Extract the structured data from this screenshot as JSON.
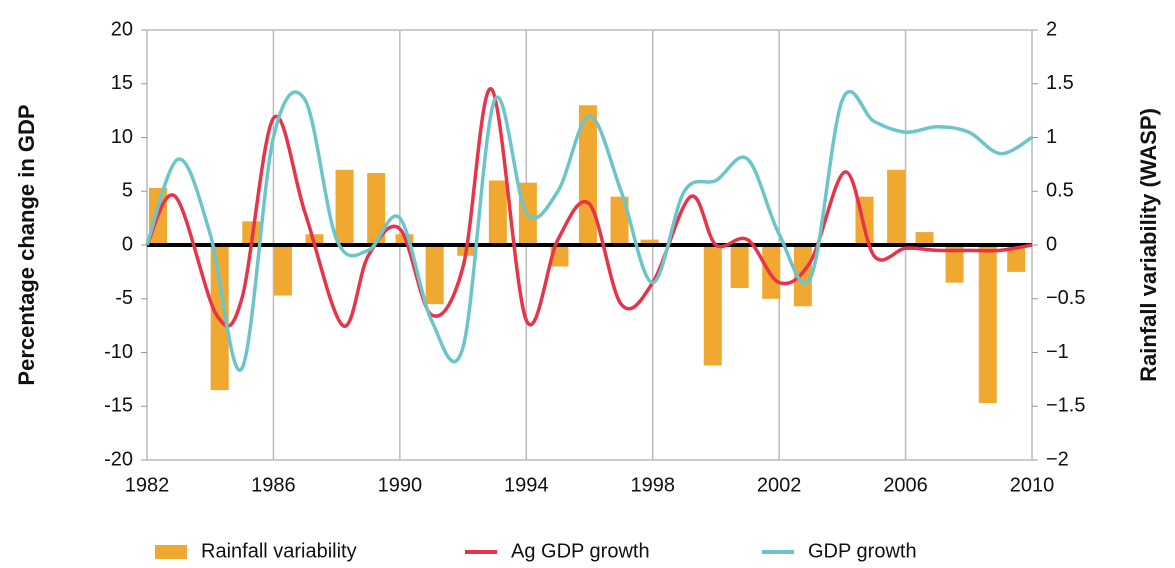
{
  "chart_data": {
    "type": "bar_line",
    "y_label": "Percentage change in GDP",
    "y2_label": "Rainfall variability (WASP)",
    "xlim": [
      1982,
      2010
    ],
    "xticks": [
      1982,
      1986,
      1990,
      1994,
      1998,
      2002,
      2006,
      2010
    ],
    "ylim": [
      -20,
      20
    ],
    "yticks": [
      20,
      15,
      10,
      5,
      0,
      -5,
      -10,
      -15,
      -20
    ],
    "y2lim": [
      -2,
      2
    ],
    "y2ticks": [
      2,
      {
        "value": 1.5,
        "label": "1.5"
      },
      1,
      {
        "value": 0.5,
        "label": "0.5"
      },
      0,
      {
        "value": -0.5,
        "label": "−0.5"
      },
      {
        "value": -1,
        "label": "−1"
      },
      {
        "value": -1.5,
        "label": "−1.5"
      },
      {
        "value": -2,
        "label": "−2"
      }
    ],
    "grid": true,
    "series": [
      {
        "name": "Rainfall variability",
        "color": "#f0a830",
        "kind": "bar",
        "axis": "y2",
        "x": [
          1982.35,
          1984.3,
          1985.3,
          1986.3,
          1987.3,
          1988.25,
          1989.25,
          1990.15,
          1991.1,
          1992.1,
          1993.1,
          1994.05,
          1995.05,
          1995.95,
          1996.95,
          1997.9,
          1999.9,
          2000.75,
          2001.75,
          2002.75,
          2004.7,
          2005.7,
          2006.6,
          2007.55,
          2008.6,
          2009.5
        ],
        "values": [
          0.53,
          -1.35,
          0.22,
          -0.47,
          0.1,
          0.7,
          0.67,
          0.1,
          -0.55,
          -0.1,
          0.6,
          0.58,
          -0.2,
          1.3,
          0.45,
          0.05,
          -1.12,
          -0.4,
          -0.5,
          -0.57,
          0.45,
          0.7,
          0.12,
          -0.35,
          -1.47,
          -0.25
        ]
      },
      {
        "name": "Ag GDP growth",
        "color": "#e8344a",
        "kind": "line",
        "x": [
          1982,
          1982.9,
          1984.2,
          1985,
          1986,
          1987,
          1988.2,
          1989,
          1990,
          1991,
          1992,
          1992.9,
          1994,
          1995,
          1996,
          1997,
          1998,
          1999.2,
          2000,
          2001,
          2002,
          2003,
          2004.1,
          2005,
          2006,
          2007,
          2008,
          2009,
          2010
        ],
        "values": [
          0,
          4.5,
          -6.5,
          -5,
          11.8,
          3,
          -7.5,
          -1,
          1.5,
          -6.5,
          -2,
          14.5,
          -7,
          0.5,
          3.8,
          -5.5,
          -3.5,
          4.5,
          0,
          0.5,
          -3.5,
          -1.5,
          6.8,
          -1,
          -0.3,
          -0.5,
          -0.5,
          -0.5,
          0
        ]
      },
      {
        "name": "GDP growth",
        "color": "#6cc5c8",
        "kind": "line",
        "x": [
          1982,
          1983,
          1984,
          1985,
          1986,
          1987,
          1988,
          1989,
          1990,
          1991,
          1992,
          1993,
          1994,
          1995,
          1996,
          1997,
          1998,
          1999,
          2000,
          2001,
          2002,
          2003,
          2004,
          2005,
          2006,
          2007,
          2008,
          2009,
          2010
        ],
        "values": [
          0,
          8,
          1,
          -11.5,
          10,
          13.5,
          0.5,
          -0.5,
          2.5,
          -7,
          -9.5,
          13.5,
          3,
          5,
          12,
          5,
          -3.5,
          5,
          6,
          8,
          1,
          -3,
          13.5,
          11.5,
          10.5,
          11,
          10.5,
          8.5,
          10
        ]
      }
    ]
  }
}
